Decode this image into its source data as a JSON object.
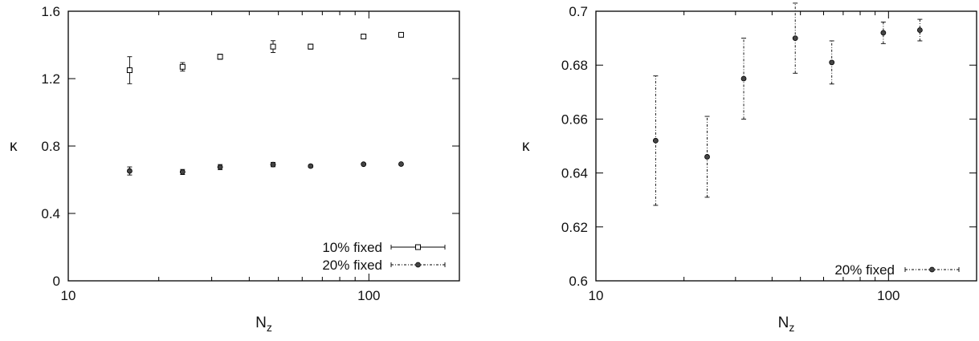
{
  "chart_data": [
    {
      "type": "scatter",
      "title": "",
      "xlabel": "N",
      "xlabel_subscript": "z",
      "ylabel": "κ",
      "xscale": "log",
      "xlim": [
        10,
        200
      ],
      "ylim": [
        0,
        1.6
      ],
      "x_ticks": [
        10,
        100
      ],
      "x_tick_labels": [
        "10",
        "100"
      ],
      "y_ticks": [
        0,
        0.4,
        0.8,
        1.2,
        1.6
      ],
      "y_tick_labels": [
        "0",
        "0.4",
        "0.8",
        "1.2",
        "1.6"
      ],
      "legend_position": "bottom-right",
      "grid": false,
      "series": [
        {
          "name": "10% fixed",
          "marker": "open-square",
          "line_style": "solid",
          "x": [
            16,
            24,
            32,
            48,
            64,
            96,
            128
          ],
          "y": [
            1.25,
            1.27,
            1.33,
            1.39,
            1.39,
            1.45,
            1.46
          ],
          "err": [
            0.08,
            0.025,
            0.015,
            0.035,
            0.015,
            0.01,
            0.01
          ]
        },
        {
          "name": "20% fixed",
          "marker": "filled-circle",
          "line_style": "dash-dot",
          "x": [
            16,
            24,
            32,
            48,
            64,
            96,
            128
          ],
          "y": [
            0.652,
            0.646,
            0.675,
            0.69,
            0.681,
            0.692,
            0.693
          ],
          "err": [
            0.024,
            0.015,
            0.015,
            0.013,
            0.008,
            0.004,
            0.004
          ]
        }
      ]
    },
    {
      "type": "scatter",
      "title": "",
      "xlabel": "N",
      "xlabel_subscript": "z",
      "ylabel": "κ",
      "xscale": "log",
      "xlim": [
        10,
        200
      ],
      "ylim": [
        0.6,
        0.7
      ],
      "x_ticks": [
        10,
        100
      ],
      "x_tick_labels": [
        "10",
        "100"
      ],
      "y_ticks": [
        0.6,
        0.62,
        0.64,
        0.66,
        0.68,
        0.7
      ],
      "y_tick_labels": [
        "0.6",
        "0.62",
        "0.64",
        "0.66",
        "0.68",
        "0.7"
      ],
      "legend_position": "bottom-right",
      "grid": false,
      "series": [
        {
          "name": "20% fixed",
          "marker": "filled-circle",
          "line_style": "dash-dot",
          "x": [
            16,
            24,
            32,
            48,
            64,
            96,
            128
          ],
          "y": [
            0.652,
            0.646,
            0.675,
            0.69,
            0.681,
            0.692,
            0.693
          ],
          "err": [
            0.024,
            0.015,
            0.015,
            0.013,
            0.008,
            0.004,
            0.004
          ]
        }
      ]
    }
  ]
}
